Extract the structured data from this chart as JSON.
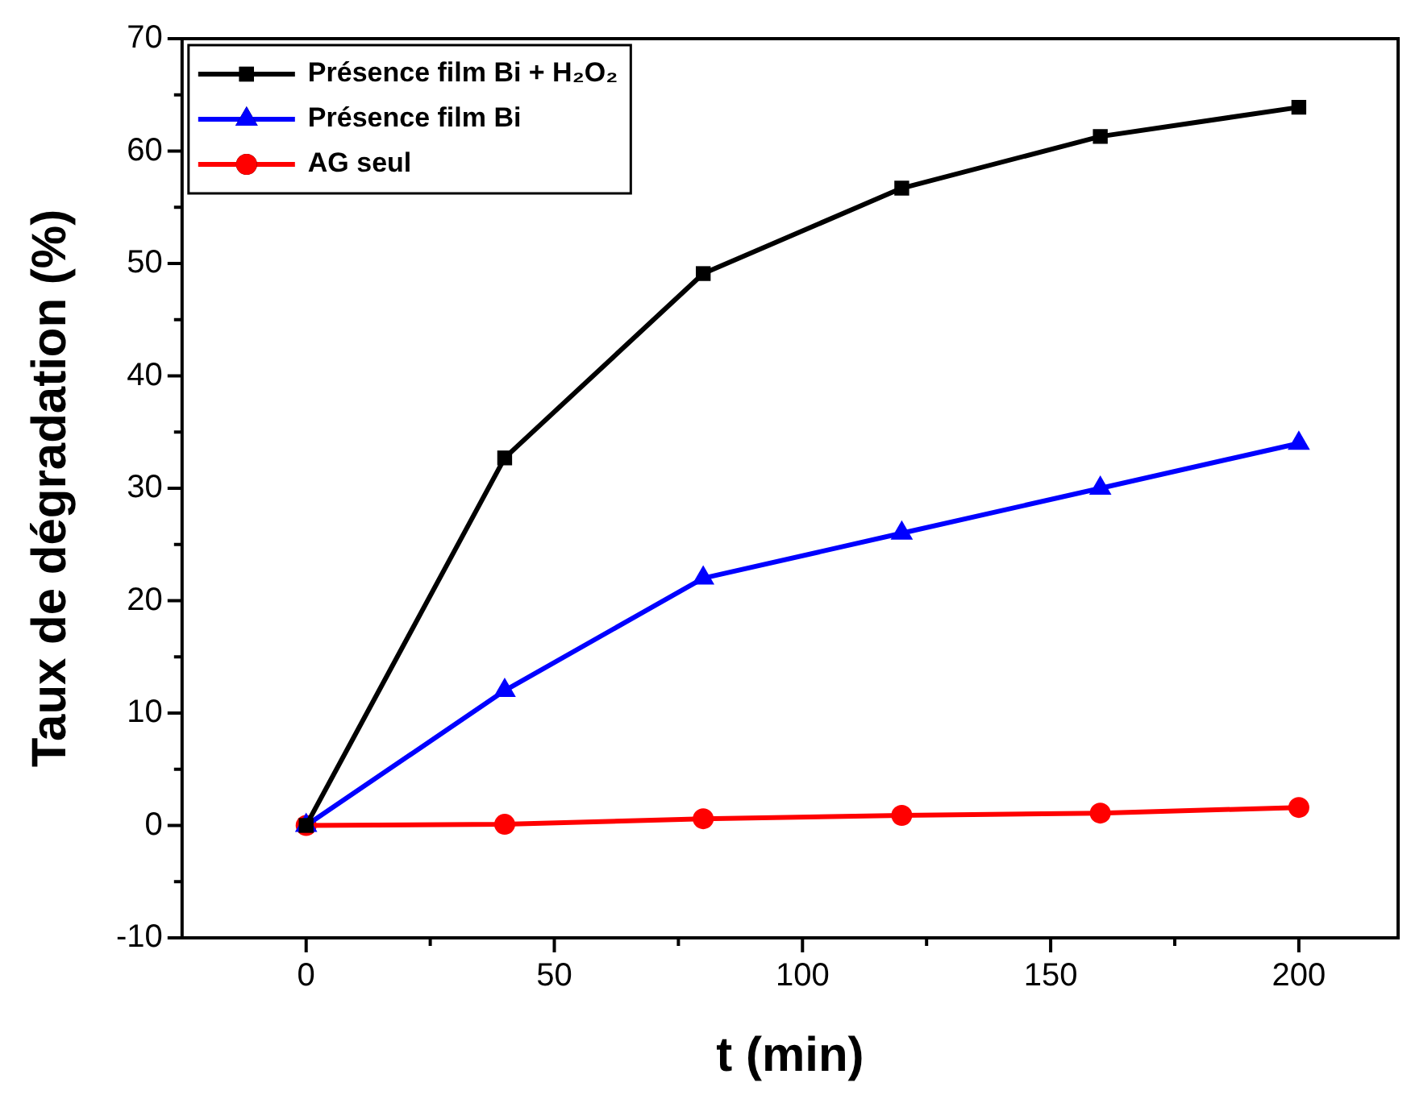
{
  "chart_data": {
    "type": "line",
    "xlabel": "t (min)",
    "ylabel": "Taux de dégradation (%)",
    "x": [
      0,
      40,
      80,
      120,
      160,
      200
    ],
    "series": [
      {
        "name": "Présence film Bi + H₂O₂",
        "color": "#000000",
        "marker": "square",
        "values": [
          0,
          32.7,
          49.1,
          56.7,
          61.3,
          63.9
        ]
      },
      {
        "name": "Présence film Bi",
        "color": "#0000ff",
        "marker": "triangle",
        "values": [
          0,
          12,
          22,
          26,
          30,
          34
        ]
      },
      {
        "name": "AG seul",
        "color": "#ff0000",
        "marker": "circle",
        "values": [
          0,
          0.1,
          0.6,
          0.9,
          1.1,
          1.6
        ]
      }
    ],
    "xlim": [
      -25,
      220
    ],
    "xticks": [
      0,
      {
        "value": 25,
        "label": null
      },
      50,
      {
        "value": 75,
        "label": null
      },
      100,
      {
        "value": 125,
        "label": null
      },
      150,
      {
        "value": 175,
        "label": null
      },
      200
    ],
    "ylim": [
      -10,
      70
    ],
    "yticks": [
      -10,
      {
        "value": -5,
        "label": null
      },
      0,
      {
        "value": 5,
        "label": null
      },
      10,
      {
        "value": 15,
        "label": null
      },
      20,
      {
        "value": 25,
        "label": null
      },
      30,
      {
        "value": 35,
        "label": null
      },
      40,
      {
        "value": 45,
        "label": null
      },
      50,
      {
        "value": 55,
        "label": null
      },
      60,
      {
        "value": 65,
        "label": null
      },
      70
    ],
    "grid": false,
    "legend": "top left",
    "line_style": "solid"
  }
}
